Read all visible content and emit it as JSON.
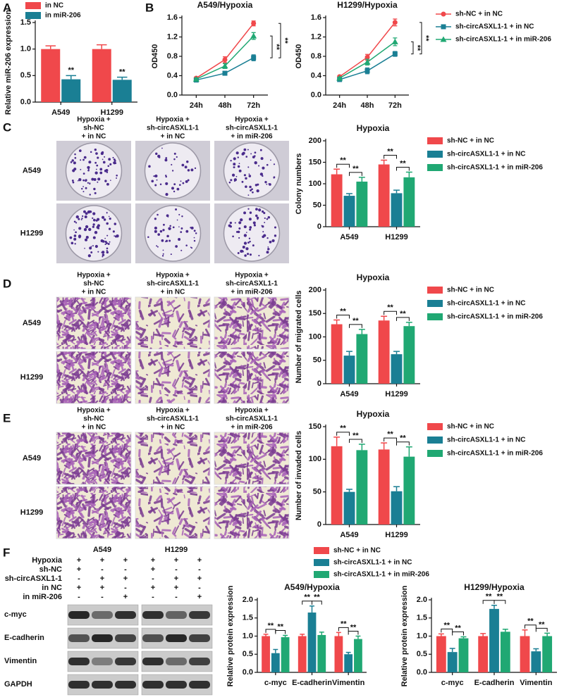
{
  "chart_data": [
    {
      "type": "bar",
      "panel": "A",
      "y_label": "Relative miR-206 expression",
      "categories": [
        "A549",
        "H1299"
      ],
      "series": [
        {
          "name": "in NC",
          "color": "#f0484b",
          "values": [
            1.0,
            1.0
          ],
          "errors": [
            0.06,
            0.08
          ]
        },
        {
          "name": "in miR-206",
          "color": "#1a7f94",
          "values": [
            0.43,
            0.42
          ],
          "errors": [
            0.07,
            0.05
          ],
          "significance": [
            "**",
            "**"
          ]
        }
      ],
      "ylim": [
        0,
        1.5
      ],
      "yticks": [
        {
          "value": 0,
          "label": "0.0"
        },
        0.5,
        {
          "value": 1,
          "label": "1.0"
        },
        1.5
      ]
    },
    {
      "type": "line",
      "panel": "B",
      "title": "A549/Hypoxia",
      "y_label": "OD450",
      "categories": [
        "24h",
        "48h",
        "72h"
      ],
      "series": [
        {
          "name": "sh-NC + in NC",
          "color": "#f0484b",
          "values": [
            0.35,
            0.73,
            1.48
          ],
          "errors": [
            0.02,
            0.06,
            0.05
          ]
        },
        {
          "name": "sh-circASXL1-1 + in NC",
          "color": "#1a7f94",
          "values": [
            0.31,
            0.45,
            0.77
          ],
          "errors": [
            0.02,
            0.04,
            0.06
          ],
          "significance": [
            null,
            null,
            "**"
          ]
        },
        {
          "name": "sh-circASXL1-1 + in miR-206",
          "color": "#20a873",
          "values": [
            0.33,
            0.6,
            1.22
          ],
          "errors": [
            0.02,
            0.05,
            0.07
          ],
          "significance": [
            null,
            null,
            "**"
          ]
        }
      ],
      "ylim": [
        0,
        1.6
      ],
      "yticks": [
        {
          "value": 0,
          "label": "0.0"
        },
        0.4,
        0.8,
        1.2,
        1.6
      ]
    },
    {
      "type": "line",
      "title": "H1299/Hypoxia",
      "y_label": "OD450",
      "categories": [
        "24h",
        "48h",
        "72h"
      ],
      "series": [
        {
          "values": [
            0.38,
            0.78,
            1.5
          ],
          "errors": [
            0.02,
            0.06,
            0.07
          ]
        },
        {
          "values": [
            0.32,
            0.5,
            0.85
          ],
          "errors": [
            0.02,
            0.06,
            0.05
          ],
          "significance": [
            null,
            null,
            "**"
          ]
        },
        {
          "values": [
            0.35,
            0.68,
            1.1
          ],
          "errors": [
            0.02,
            0.06,
            0.08
          ],
          "significance": [
            null,
            null,
            "**"
          ]
        }
      ],
      "ylim": [
        0,
        1.6
      ],
      "yticks": [
        {
          "value": 0,
          "label": "0.0"
        },
        0.4,
        0.8,
        1.2,
        1.6
      ]
    },
    {
      "type": "bar",
      "title": "Hypoxia",
      "y_label": "Colony numbers",
      "categories": [
        "A549",
        "H1299"
      ],
      "series": [
        {
          "name": "sh-NC + in NC",
          "color": "#f0484b",
          "values": [
            122,
            145
          ],
          "errors": [
            12,
            10
          ]
        },
        {
          "name": "sh-circASXL1-1 + in NC",
          "color": "#1a7f94",
          "values": [
            72,
            78
          ],
          "errors": [
            5,
            7
          ],
          "significance": [
            "**",
            "**"
          ]
        },
        {
          "name": "sh-circASXL1-1 + in miR-206",
          "color": "#20a873",
          "values": [
            105,
            115
          ],
          "errors": [
            10,
            12
          ],
          "significance": [
            "**",
            "**"
          ]
        }
      ],
      "ylim": [
        0,
        200
      ],
      "yticks": [
        0,
        50,
        100,
        150,
        200
      ]
    },
    {
      "type": "bar",
      "title": "Hypoxia",
      "y_label": "Number of migrated cells",
      "categories": [
        "A549",
        "H1299"
      ],
      "series": [
        {
          "name": "sh-NC + in NC",
          "color": "#f0484b",
          "values": [
            127,
            135
          ],
          "errors": [
            9,
            9
          ]
        },
        {
          "name": "sh-circASXL1-1 + in NC",
          "color": "#1a7f94",
          "values": [
            60,
            63
          ],
          "errors": [
            9,
            6
          ],
          "significance": [
            "**",
            "**"
          ]
        },
        {
          "name": "sh-circASXL1-1 + in miR-206",
          "color": "#20a873",
          "values": [
            106,
            123
          ],
          "errors": [
            10,
            8
          ],
          "significance": [
            "**",
            "**"
          ]
        }
      ],
      "ylim": [
        0,
        200
      ],
      "yticks": [
        0,
        50,
        100,
        150,
        200
      ]
    },
    {
      "type": "bar",
      "title": "Hypoxia",
      "y_label": "Number of invaded cells",
      "categories": [
        "A549",
        "H1299"
      ],
      "series": [
        {
          "name": "sh-NC + in NC",
          "color": "#f0484b",
          "values": [
            120,
            115
          ],
          "errors": [
            14,
            10
          ]
        },
        {
          "name": "sh-circASXL1-1 + in NC",
          "color": "#1a7f94",
          "values": [
            50,
            51
          ],
          "errors": [
            4,
            7
          ],
          "significance": [
            "**",
            "**"
          ]
        },
        {
          "name": "sh-circASXL1-1 + in miR-206",
          "color": "#20a873",
          "values": [
            114,
            104
          ],
          "errors": [
            9,
            15
          ],
          "significance": [
            "**",
            "**"
          ]
        }
      ],
      "ylim": [
        0,
        150
      ],
      "yticks": [
        0,
        50,
        100,
        150
      ]
    },
    {
      "type": "bar",
      "title": "A549/Hypoxia",
      "y_label": "Relative protein expression",
      "categories": [
        "c-myc",
        "E-cadherin",
        "Vimentin"
      ],
      "series": [
        {
          "name": "sh-NC + in NC",
          "color": "#f0484b",
          "values": [
            1.0,
            1.0,
            1.0
          ],
          "errors": [
            0.05,
            0.05,
            0.1
          ]
        },
        {
          "name": "sh-circASXL1-1 + in NC",
          "color": "#1a7f94",
          "values": [
            0.53,
            1.65,
            0.5
          ],
          "errors": [
            0.1,
            0.18,
            0.05
          ],
          "significance": [
            "**",
            "**",
            "**"
          ]
        },
        {
          "name": "sh-circASXL1-1 + in miR-206",
          "color": "#20a873",
          "values": [
            0.97,
            1.03,
            0.92
          ],
          "errors": [
            0.05,
            0.08,
            0.08
          ],
          "significance": [
            "**",
            "**",
            "**"
          ]
        }
      ],
      "ylim": [
        0,
        2
      ],
      "yticks": [
        {
          "value": 0,
          "label": "0.0"
        },
        0.5,
        {
          "value": 1,
          "label": "1.0"
        },
        1.5,
        {
          "value": 2,
          "label": "2.0"
        }
      ]
    },
    {
      "type": "bar",
      "title": "H1299/Hypoxia",
      "y_label": "Relative protein expression",
      "categories": [
        "c-myc",
        "E-cadherin",
        "Vimentin"
      ],
      "series": [
        {
          "values": [
            1.0,
            1.0,
            1.0
          ],
          "errors": [
            0.06,
            0.07,
            0.17
          ]
        },
        {
          "values": [
            0.56,
            1.75,
            0.58
          ],
          "errors": [
            0.1,
            0.1,
            0.07
          ],
          "significance": [
            "**",
            "**",
            "**"
          ]
        },
        {
          "values": [
            0.94,
            1.12,
            1.0
          ],
          "errors": [
            0.04,
            0.07,
            0.08
          ],
          "significance": [
            "**",
            "**",
            "**"
          ]
        }
      ],
      "ylim": [
        0,
        2
      ],
      "yticks": [
        {
          "value": 0,
          "label": "0.0"
        },
        0.5,
        {
          "value": 1,
          "label": "1.0"
        },
        1.5,
        {
          "value": 2,
          "label": "2.0"
        }
      ]
    }
  ],
  "image_panels": [
    {
      "panel": "C",
      "column_headers": [
        [
          "Hypoxia +",
          "sh-NC",
          "+ in NC"
        ],
        [
          "Hypoxia +",
          "sh-circASXL1-1",
          "+ in NC"
        ],
        [
          "Hypoxia +",
          "sh-circASXL1-1",
          "+ in miR-206"
        ]
      ],
      "row_labels": [
        "A549",
        "H1299"
      ]
    },
    {
      "panel": "D",
      "column_headers": [
        [
          "Hypoxia +",
          "sh-NC",
          "+ in NC"
        ],
        [
          "Hypoxia +",
          "sh-circASXL1-1",
          "+ in NC"
        ],
        [
          "Hypoxia +",
          "sh-circASXL1-1",
          "+ in miR-206"
        ]
      ],
      "row_labels": [
        "A549",
        "H1299"
      ]
    },
    {
      "panel": "E",
      "column_headers": [
        [
          "Hypoxia +",
          "sh-NC",
          "+ in NC"
        ],
        [
          "Hypoxia +",
          "sh-circASXL1-1",
          "+ in NC"
        ],
        [
          "Hypoxia +",
          "sh-circASXL1-1",
          "+ in miR-206"
        ]
      ],
      "row_labels": [
        "A549",
        "H1299"
      ]
    }
  ],
  "blot": {
    "panel": "F",
    "cell_lines": [
      "A549",
      "H1299"
    ],
    "conditions": [
      {
        "label": "Hypoxia",
        "signs": [
          "+",
          "+",
          "+",
          "+",
          "+",
          "+"
        ]
      },
      {
        "label": "sh-NC",
        "signs": [
          "+",
          "-",
          "-",
          "+",
          "-",
          "-"
        ]
      },
      {
        "label": "sh-circASXL1-1",
        "signs": [
          "-",
          "+",
          "+",
          "-",
          "+",
          "+"
        ]
      },
      {
        "label": "in NC",
        "signs": [
          "+",
          "+",
          "-",
          "+",
          "+",
          "-"
        ]
      },
      {
        "label": "in miR-206",
        "signs": [
          "-",
          "-",
          "+",
          "-",
          "-",
          "+"
        ]
      }
    ],
    "proteins": [
      "c-myc",
      "E-cadherin",
      "Vimentin",
      "GAPDH"
    ]
  }
}
